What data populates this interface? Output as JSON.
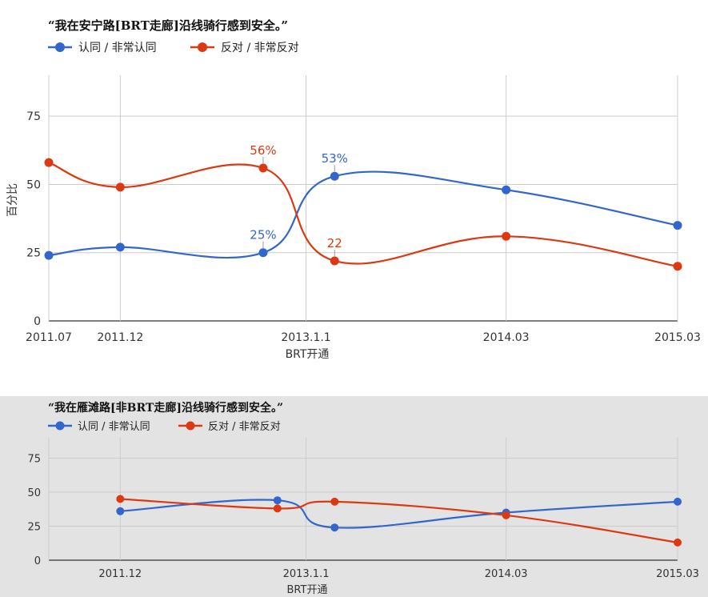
{
  "chart_data": [
    {
      "type": "line",
      "title": "“我在安宁路[BRT走廊]沿线骑行感到安全。”",
      "xlabel": "BRT开通",
      "ylabel": "百分比",
      "ylim": [
        0,
        90
      ],
      "yticks": [
        "0",
        "25",
        "50",
        "75"
      ],
      "x_positions": [
        0,
        1,
        3,
        4,
        6.4,
        8.8
      ],
      "x_ticks": [
        {
          "pos": 0,
          "label": "2011.07"
        },
        {
          "pos": 1,
          "label": "2011.12"
        },
        {
          "pos": 3.6,
          "label": "2013.1.1"
        },
        {
          "pos": 6.4,
          "label": "2014.03"
        },
        {
          "pos": 8.8,
          "label": "2015.03"
        }
      ],
      "x_range": [
        0,
        8.8
      ],
      "grid": true,
      "legend_position": "top-left",
      "background": "#ffffff",
      "series": [
        {
          "name": "认同 / 非常认同",
          "color": "#3366cc",
          "values": [
            24,
            27,
            25,
            53,
            48,
            35
          ]
        },
        {
          "name": "反对 / 非常反对",
          "color": "#dc3912",
          "values": [
            58,
            49,
            56,
            22,
            31,
            20
          ]
        }
      ],
      "annotations": [
        {
          "series": 0,
          "point": 2,
          "text": "25%"
        },
        {
          "series": 0,
          "point": 3,
          "text": "53%"
        },
        {
          "series": 1,
          "point": 2,
          "text": "56%"
        },
        {
          "series": 1,
          "point": 3,
          "text": "22"
        }
      ]
    },
    {
      "type": "line",
      "title": "“我在雁滩路[非BRT走廊]沿线骑行感到安全。”",
      "xlabel": "BRT开通",
      "ylabel": "",
      "ylim": [
        0,
        90
      ],
      "yticks": [
        "0",
        "25",
        "50",
        "75"
      ],
      "x_positions": [
        1,
        3.2,
        4,
        6.4,
        8.8
      ],
      "x_ticks": [
        {
          "pos": 1,
          "label": "2011.12"
        },
        {
          "pos": 3.6,
          "label": "2013.1.1"
        },
        {
          "pos": 6.4,
          "label": "2014.03"
        },
        {
          "pos": 8.8,
          "label": "2015.03"
        }
      ],
      "x_range": [
        0,
        8.8
      ],
      "grid": true,
      "legend_position": "top-left",
      "background": "#e3e3e3",
      "series": [
        {
          "name": "认同 / 非常认同",
          "color": "#3366cc",
          "values": [
            36,
            44,
            24,
            35,
            43
          ]
        },
        {
          "name": "反对 / 非常反对",
          "color": "#dc3912",
          "values": [
            45,
            38,
            43,
            33,
            13
          ]
        }
      ],
      "annotations": []
    }
  ]
}
